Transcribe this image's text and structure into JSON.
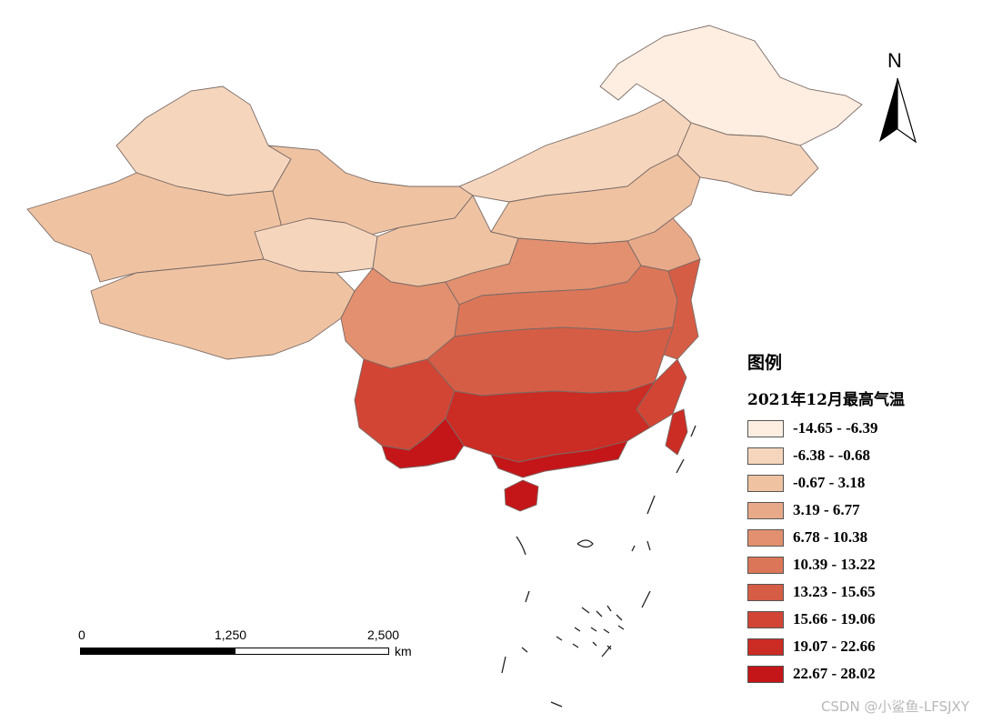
{
  "map": {
    "legend": {
      "title": "图例",
      "subtitle": "2021年12月最高气温",
      "classes": [
        {
          "label": "-14.65 - -6.39",
          "color": "#fdeee1"
        },
        {
          "label": "-6.38 - -0.68",
          "color": "#f5d6bd"
        },
        {
          "label": "-0.67 - 3.18",
          "color": "#efc3a2"
        },
        {
          "label": "3.19 - 6.77",
          "color": "#e8a988"
        },
        {
          "label": "6.78 - 10.38",
          "color": "#e2906f"
        },
        {
          "label": "10.39 - 13.22",
          "color": "#dc7659"
        },
        {
          "label": "13.23 - 15.65",
          "color": "#d65d45"
        },
        {
          "label": "15.66 - 19.06",
          "color": "#d24535"
        },
        {
          "label": "19.07 - 22.66",
          "color": "#cb2c24"
        },
        {
          "label": "22.67 - 28.02",
          "color": "#c41618"
        }
      ]
    },
    "scale_bar": {
      "labels": [
        "0",
        "1,250",
        "2,500"
      ],
      "unit": "km"
    },
    "north_arrow": {
      "letter": "N"
    },
    "watermark": "CSDN @小鲨鱼-LFSJXY"
  }
}
